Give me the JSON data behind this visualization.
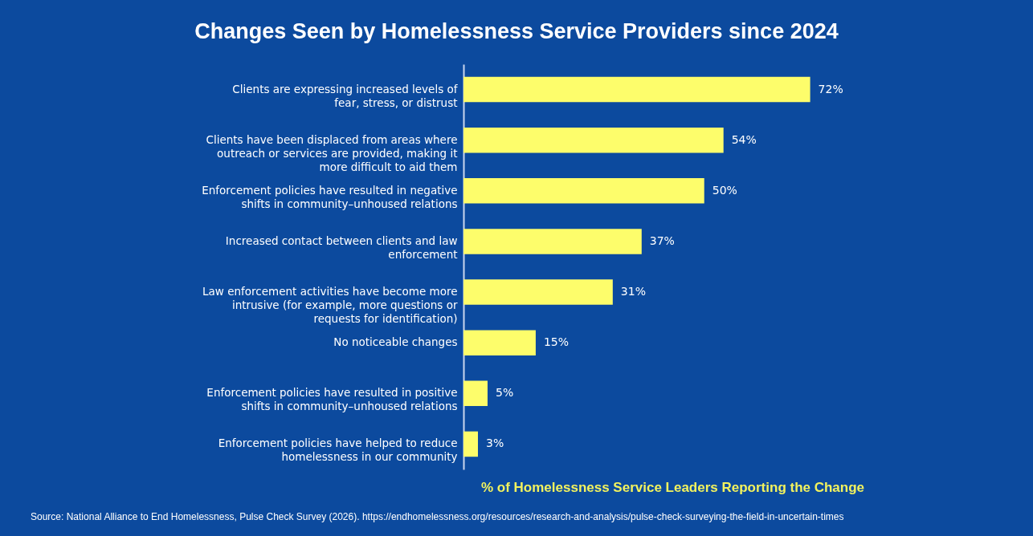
{
  "chart_data": {
    "type": "bar",
    "orientation": "horizontal",
    "title": "Changes Seen by Homelessness Service Providers since 2024",
    "xlabel": "% of Homelessness Service Leaders Reporting the Change",
    "categories": [
      "Clients are expressing increased levels of fear, stress, or distrust",
      "Clients have been displaced from areas where outreach or services are provided, making it more difficult to aid them",
      "Enforcement policies have resulted in negative shifts in community–unhoused relations",
      "Increased contact between clients and law enforcement",
      "Law enforcement activities have become more intrusive (for example, more questions or requests for identification)",
      "No noticeable changes",
      "Enforcement policies have resulted in positive shifts in community–unhoused relations",
      "Enforcement policies have helped to reduce homelessness in our community"
    ],
    "values": [
      72,
      54,
      50,
      37,
      31,
      15,
      5,
      3
    ],
    "value_labels": [
      "72%",
      "54%",
      "50%",
      "37%",
      "31%",
      "15%",
      "5%",
      "3%"
    ],
    "color": "#fdfd6b",
    "grid": false,
    "annotations": [
      "Source: National Alliance to End Homelessness, Pulse Check Survey (2026). https://endhomelessness.org/resources/research-and-analysis/pulse-check-surveying-the-field-in-uncertain-times"
    ]
  }
}
